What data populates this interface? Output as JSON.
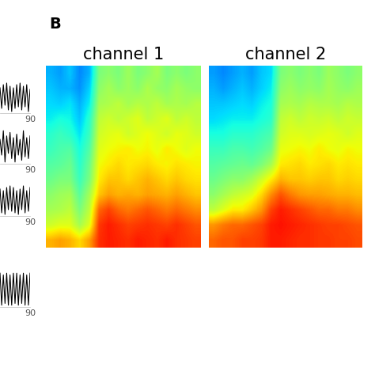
{
  "panel_label": "B",
  "chart_data": [
    {
      "type": "line",
      "x": [
        0,
        5,
        10,
        15,
        20,
        25,
        30,
        35,
        40,
        45,
        50,
        55,
        60,
        65,
        70,
        75,
        80,
        85,
        90
      ],
      "values": [
        0.6,
        -0.7,
        0.8,
        -0.5,
        0.9,
        -0.8,
        0.7,
        -0.9,
        0.6,
        -0.7,
        0.8,
        -0.6,
        0.9,
        -0.8,
        0.7,
        -0.6,
        0.8,
        -0.9,
        0.5
      ],
      "xlim": [
        0,
        90
      ],
      "ylim": [
        -1,
        1
      ],
      "xticks": [
        90
      ],
      "tick_labels": "x",
      "color": "#000000"
    },
    {
      "type": "line",
      "x": [
        0,
        5,
        10,
        15,
        20,
        25,
        30,
        35,
        40,
        45,
        50,
        55,
        60,
        65,
        70,
        75,
        80,
        85,
        90
      ],
      "values": [
        0.4,
        -0.5,
        0.9,
        -0.9,
        0.6,
        -0.4,
        0.8,
        -0.7,
        0.5,
        -0.9,
        0.7,
        -0.5,
        0.4,
        -0.8,
        0.9,
        -0.6,
        0.5,
        -0.7,
        0.6
      ],
      "xlim": [
        0,
        90
      ],
      "ylim": [
        -1,
        1
      ],
      "xticks": [
        90
      ],
      "tick_labels": "x",
      "color": "#000000"
    },
    {
      "type": "line",
      "x": [
        0,
        5,
        10,
        15,
        20,
        25,
        30,
        35,
        40,
        45,
        50,
        55,
        60,
        65,
        70,
        75,
        80,
        85,
        90
      ],
      "values": [
        0.7,
        -0.8,
        0.6,
        -0.9,
        0.8,
        -0.6,
        0.9,
        -0.7,
        0.8,
        -0.8,
        0.6,
        -0.9,
        0.7,
        -0.6,
        0.9,
        -0.8,
        0.6,
        -0.7,
        0.8
      ],
      "xlim": [
        0,
        90
      ],
      "ylim": [
        -1,
        1
      ],
      "xticks": [
        90
      ],
      "tick_labels": "x",
      "color": "#000000"
    },
    {
      "type": "line",
      "x": [
        0,
        5,
        10,
        15,
        20,
        25,
        30,
        35,
        40,
        45,
        50,
        55,
        60,
        65,
        70,
        75,
        80,
        85,
        90
      ],
      "values": [
        0.9,
        -0.9,
        0.8,
        -0.8,
        0.9,
        -0.9,
        0.8,
        -0.9,
        0.9,
        -0.8,
        0.9,
        -0.9,
        0.8,
        -0.8,
        0.9,
        -0.9,
        0.8,
        -0.9,
        0.9
      ],
      "xlim": [
        0,
        90
      ],
      "ylim": [
        -1,
        1
      ],
      "xticks": [
        90
      ],
      "tick_labels": "x",
      "color": "#000000"
    },
    {
      "type": "heatmap",
      "title": "channel 1",
      "tick_labels": false,
      "color_range": [
        0,
        1
      ],
      "cells": [
        [
          0.3,
          0.28,
          0.32,
          0.26,
          0.3,
          0.5,
          0.52,
          0.5,
          0.54,
          0.5,
          0.52,
          0.55,
          0.5,
          0.52,
          0.5,
          0.52
        ],
        [
          0.32,
          0.3,
          0.3,
          0.27,
          0.33,
          0.52,
          0.55,
          0.52,
          0.54,
          0.52,
          0.56,
          0.53,
          0.52,
          0.55,
          0.53,
          0.52
        ],
        [
          0.34,
          0.33,
          0.35,
          0.3,
          0.36,
          0.55,
          0.56,
          0.58,
          0.55,
          0.57,
          0.56,
          0.58,
          0.55,
          0.56,
          0.55,
          0.57
        ],
        [
          0.36,
          0.38,
          0.37,
          0.32,
          0.4,
          0.58,
          0.6,
          0.58,
          0.6,
          0.62,
          0.58,
          0.6,
          0.62,
          0.58,
          0.6,
          0.58
        ],
        [
          0.4,
          0.42,
          0.4,
          0.35,
          0.42,
          0.6,
          0.62,
          0.63,
          0.6,
          0.62,
          0.64,
          0.62,
          0.6,
          0.63,
          0.62,
          0.6
        ],
        [
          0.42,
          0.44,
          0.45,
          0.38,
          0.45,
          0.62,
          0.64,
          0.65,
          0.66,
          0.64,
          0.65,
          0.63,
          0.66,
          0.64,
          0.62,
          0.64
        ],
        [
          0.45,
          0.46,
          0.48,
          0.4,
          0.48,
          0.64,
          0.66,
          0.68,
          0.66,
          0.67,
          0.68,
          0.66,
          0.65,
          0.67,
          0.66,
          0.65
        ],
        [
          0.48,
          0.5,
          0.5,
          0.42,
          0.5,
          0.66,
          0.7,
          0.7,
          0.68,
          0.7,
          0.72,
          0.7,
          0.68,
          0.7,
          0.68,
          0.67
        ],
        [
          0.52,
          0.54,
          0.55,
          0.46,
          0.55,
          0.7,
          0.74,
          0.72,
          0.73,
          0.72,
          0.74,
          0.73,
          0.72,
          0.74,
          0.72,
          0.7
        ],
        [
          0.55,
          0.56,
          0.58,
          0.5,
          0.58,
          0.8,
          0.84,
          0.8,
          0.78,
          0.8,
          0.82,
          0.8,
          0.78,
          0.8,
          0.78,
          0.76
        ],
        [
          0.6,
          0.62,
          0.62,
          0.55,
          0.62,
          0.85,
          0.88,
          0.86,
          0.84,
          0.85,
          0.86,
          0.85,
          0.84,
          0.86,
          0.84,
          0.82
        ],
        [
          0.72,
          0.74,
          0.72,
          0.68,
          0.74,
          0.86,
          0.88,
          0.87,
          0.86,
          0.88,
          0.87,
          0.86,
          0.88,
          0.86,
          0.85,
          0.84
        ]
      ]
    },
    {
      "type": "heatmap",
      "title": "channel 2",
      "tick_labels": false,
      "color_range": [
        0,
        1
      ],
      "cells": [
        [
          0.28,
          0.26,
          0.28,
          0.3,
          0.28,
          0.32,
          0.34,
          0.5,
          0.52,
          0.5,
          0.52,
          0.5,
          0.54,
          0.52,
          0.5,
          0.52
        ],
        [
          0.3,
          0.28,
          0.3,
          0.32,
          0.3,
          0.33,
          0.36,
          0.52,
          0.54,
          0.52,
          0.53,
          0.52,
          0.55,
          0.53,
          0.52,
          0.54
        ],
        [
          0.32,
          0.32,
          0.33,
          0.34,
          0.33,
          0.36,
          0.38,
          0.55,
          0.56,
          0.55,
          0.57,
          0.56,
          0.56,
          0.55,
          0.57,
          0.56
        ],
        [
          0.34,
          0.35,
          0.36,
          0.36,
          0.36,
          0.38,
          0.4,
          0.58,
          0.6,
          0.58,
          0.6,
          0.59,
          0.6,
          0.58,
          0.6,
          0.59
        ],
        [
          0.38,
          0.38,
          0.4,
          0.4,
          0.4,
          0.42,
          0.44,
          0.6,
          0.62,
          0.62,
          0.61,
          0.62,
          0.63,
          0.62,
          0.6,
          0.62
        ],
        [
          0.42,
          0.42,
          0.44,
          0.44,
          0.43,
          0.45,
          0.48,
          0.63,
          0.64,
          0.65,
          0.64,
          0.66,
          0.64,
          0.63,
          0.65,
          0.64
        ],
        [
          0.45,
          0.46,
          0.47,
          0.48,
          0.47,
          0.5,
          0.55,
          0.66,
          0.67,
          0.68,
          0.66,
          0.67,
          0.68,
          0.66,
          0.67,
          0.66
        ],
        [
          0.48,
          0.5,
          0.52,
          0.52,
          0.55,
          0.6,
          0.66,
          0.72,
          0.7,
          0.7,
          0.69,
          0.7,
          0.7,
          0.68,
          0.69,
          0.68
        ],
        [
          0.52,
          0.55,
          0.58,
          0.6,
          0.62,
          0.68,
          0.76,
          0.82,
          0.78,
          0.75,
          0.74,
          0.74,
          0.73,
          0.72,
          0.72,
          0.71
        ],
        [
          0.58,
          0.62,
          0.66,
          0.66,
          0.7,
          0.75,
          0.84,
          0.88,
          0.86,
          0.84,
          0.82,
          0.8,
          0.8,
          0.78,
          0.78,
          0.76
        ],
        [
          0.75,
          0.78,
          0.8,
          0.8,
          0.82,
          0.84,
          0.88,
          0.89,
          0.88,
          0.87,
          0.86,
          0.85,
          0.84,
          0.84,
          0.83,
          0.82
        ],
        [
          0.8,
          0.82,
          0.82,
          0.84,
          0.84,
          0.85,
          0.88,
          0.88,
          0.87,
          0.86,
          0.86,
          0.85,
          0.85,
          0.84,
          0.84,
          0.83
        ]
      ]
    }
  ]
}
